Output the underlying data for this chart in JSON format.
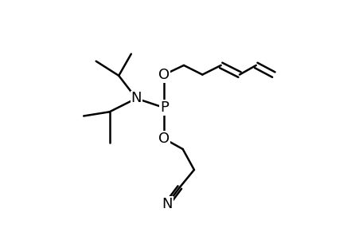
{
  "bg_color": "#ffffff",
  "line_color": "#000000",
  "line_width": 1.8,
  "font_size": 12,
  "figsize": [
    4.36,
    2.91
  ],
  "dpi": 100,
  "xlim": [
    -0.05,
    1.05
  ],
  "ylim": [
    -0.05,
    1.05
  ]
}
